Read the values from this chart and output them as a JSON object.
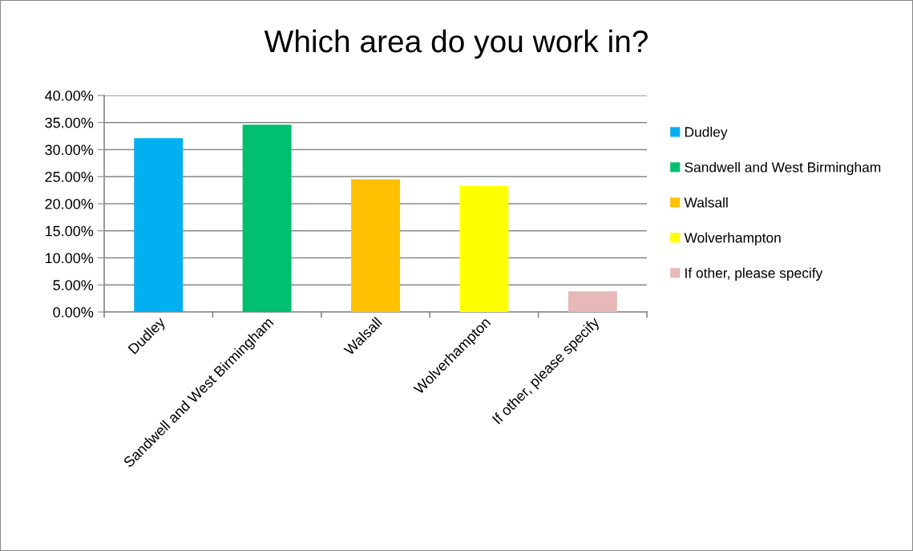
{
  "chart_data": {
    "type": "bar",
    "title": "Which area do you work in?",
    "categories": [
      "Dudley",
      "Sandwell and West Birmingham",
      "Walsall",
      "Wolverhampton",
      "If other, please specify"
    ],
    "series": [
      {
        "name": "Dudley",
        "color": "#00b0f0",
        "values": [
          32.1,
          null,
          null,
          null,
          null
        ]
      },
      {
        "name": "Sandwell and West Birmingham",
        "color": "#00bf6f",
        "values": [
          null,
          34.6,
          null,
          null,
          null
        ]
      },
      {
        "name": "Walsall",
        "color": "#ffc000",
        "values": [
          null,
          null,
          24.5,
          null,
          null
        ]
      },
      {
        "name": "Wolverhampton",
        "color": "#ffff00",
        "values": [
          null,
          null,
          null,
          23.3,
          null
        ]
      },
      {
        "name": "If other, please specify",
        "color": "#e6b8b7",
        "values": [
          null,
          null,
          null,
          null,
          3.8
        ]
      }
    ],
    "stacked": true,
    "ylim": [
      0,
      40
    ],
    "yticks": [
      {
        "value": 0,
        "label": "0.00%"
      },
      {
        "value": 5,
        "label": "5.00%"
      },
      {
        "value": 10,
        "label": "10.00%"
      },
      {
        "value": 15,
        "label": "15.00%"
      },
      {
        "value": 20,
        "label": "20.00%"
      },
      {
        "value": 25,
        "label": "25.00%"
      },
      {
        "value": 30,
        "label": "30.00%"
      },
      {
        "value": 35,
        "label": "35.00%"
      },
      {
        "value": 40,
        "label": "40.00%"
      }
    ],
    "grid": "y",
    "legend": "right"
  }
}
